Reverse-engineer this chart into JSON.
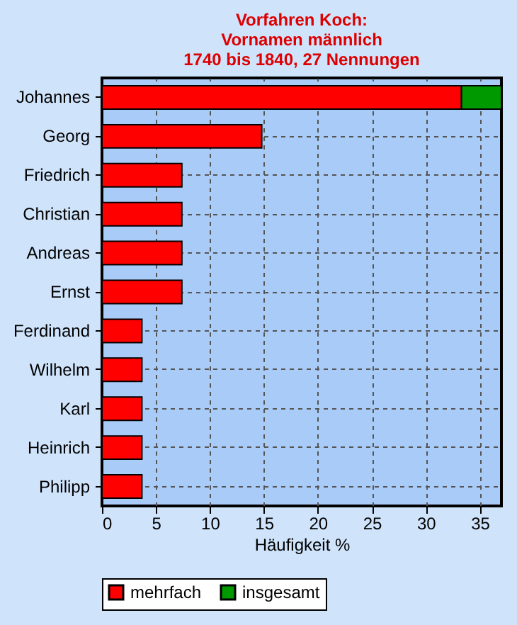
{
  "chart_data": {
    "type": "bar",
    "orientation": "horizontal",
    "stacked": true,
    "title": "Vorfahren Koch:\nVornamen männlich\n1740 bis 1840, 27 Nennungen",
    "xlabel": "Häufigkeit %",
    "categories": [
      "Johannes",
      "Georg",
      "Friedrich",
      "Christian",
      "Andreas",
      "Ernst",
      "Ferdinand",
      "Wilhelm",
      "Karl",
      "Heinrich",
      "Philipp"
    ],
    "series": [
      {
        "name": "mehrfach",
        "color": "#ff0000",
        "values": [
          33.3,
          14.8,
          7.4,
          7.4,
          7.4,
          7.4,
          3.7,
          3.7,
          3.7,
          3.7,
          3.7
        ]
      },
      {
        "name": "insgesamt",
        "color": "#009900",
        "values": [
          3.7,
          null,
          null,
          null,
          null,
          null,
          null,
          null,
          null,
          null,
          null
        ]
      }
    ],
    "xlim": [
      0,
      37
    ],
    "xticks": [
      0,
      5,
      10,
      15,
      20,
      25,
      30,
      35
    ],
    "grid": true,
    "legend": "bottom"
  }
}
